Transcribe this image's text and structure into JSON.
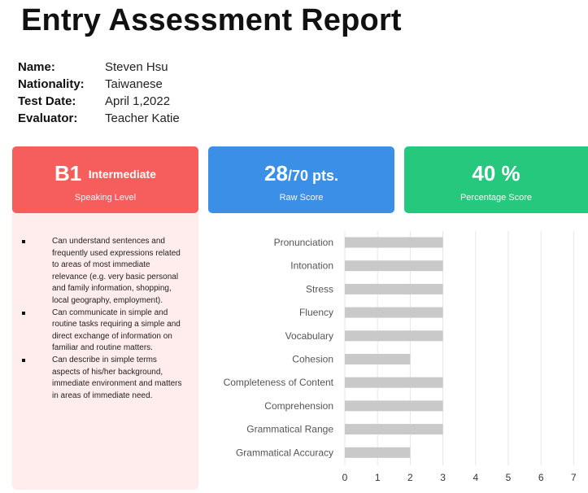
{
  "report": {
    "title": "Entry Assessment Report"
  },
  "info": [
    {
      "label": "Name:",
      "value": "Steven Hsu"
    },
    {
      "label": "Nationality:",
      "value": "Taiwanese"
    },
    {
      "label": "Test Date:",
      "value": "April 1,2022"
    },
    {
      "label": "Evaluator:",
      "value": "Teacher Katie"
    }
  ],
  "cards": {
    "level": {
      "code": "B1",
      "name": "Intermediate",
      "caption": "Speaking Level",
      "color": "#f65e5e"
    },
    "raw": {
      "score": "28",
      "total": "/70 pts.",
      "caption": "Raw Score",
      "color": "#3b8fe6"
    },
    "percent": {
      "value": "40 %",
      "caption": "Percentage Score",
      "color": "#26c87e"
    }
  },
  "descriptors": [
    "Can understand sentences and frequently used expressions related to areas of most immediate relevance (e.g. very basic personal and family information, shopping, local geography, employment).",
    "Can communicate in simple and routine tasks requiring a simple and direct exchange of information on familiar and routine matters.",
    "Can describe in simple terms aspects of his/her background, immediate environment and matters in areas of immediate need."
  ],
  "chart_data": {
    "type": "bar",
    "orientation": "horizontal",
    "categories": [
      "Pronunciation",
      "Intonation",
      "Stress",
      "Fluency",
      "Vocabulary",
      "Cohesion",
      "Completeness of Content",
      "Comprehension",
      "Grammatical Range",
      "Grammatical Accuracy"
    ],
    "values": [
      3,
      3,
      3,
      3,
      3,
      2,
      3,
      3,
      3,
      2
    ],
    "xlim": [
      0,
      7
    ],
    "xticks": [
      "0",
      "1",
      "2",
      "3",
      "4",
      "5",
      "6",
      "7"
    ],
    "grid": true,
    "bar_color": "#c9c9c9"
  }
}
